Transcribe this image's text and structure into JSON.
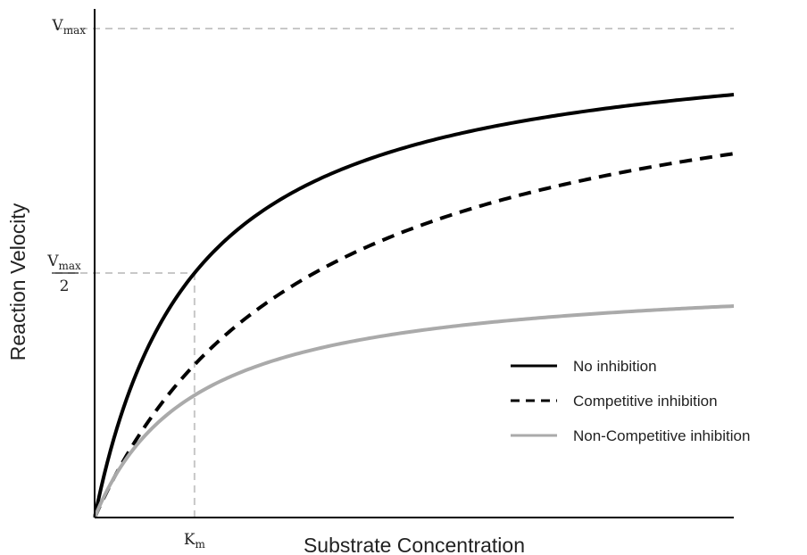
{
  "chart_data": {
    "type": "line",
    "xlabel": "Substrate Concentration",
    "ylabel": "Reaction Velocity",
    "x_tick": {
      "main": "K",
      "sub": "m"
    },
    "y_ticks": {
      "vmax": {
        "main": "V",
        "sub": "max"
      },
      "half": {
        "main": "V",
        "sub": "max",
        "denominator": "2"
      }
    },
    "series": [
      {
        "name": "No inhibition",
        "style": "solid",
        "color": "#000000",
        "km": 1,
        "vmax": 1
      },
      {
        "name": "Competitive inhibition",
        "style": "dashed",
        "color": "#000000",
        "km": 2.2,
        "vmax": 1
      },
      {
        "name": "Non-Competitive inhibition",
        "style": "solid",
        "color": "#aaaaaa",
        "km": 1,
        "vmax": 0.5
      }
    ],
    "guides": {
      "color": "#c8c8c8",
      "style": "dashed"
    },
    "xlim": [
      0,
      6.4
    ],
    "ylim": [
      0,
      1
    ],
    "legend_position": "lower-right",
    "grid": false
  }
}
